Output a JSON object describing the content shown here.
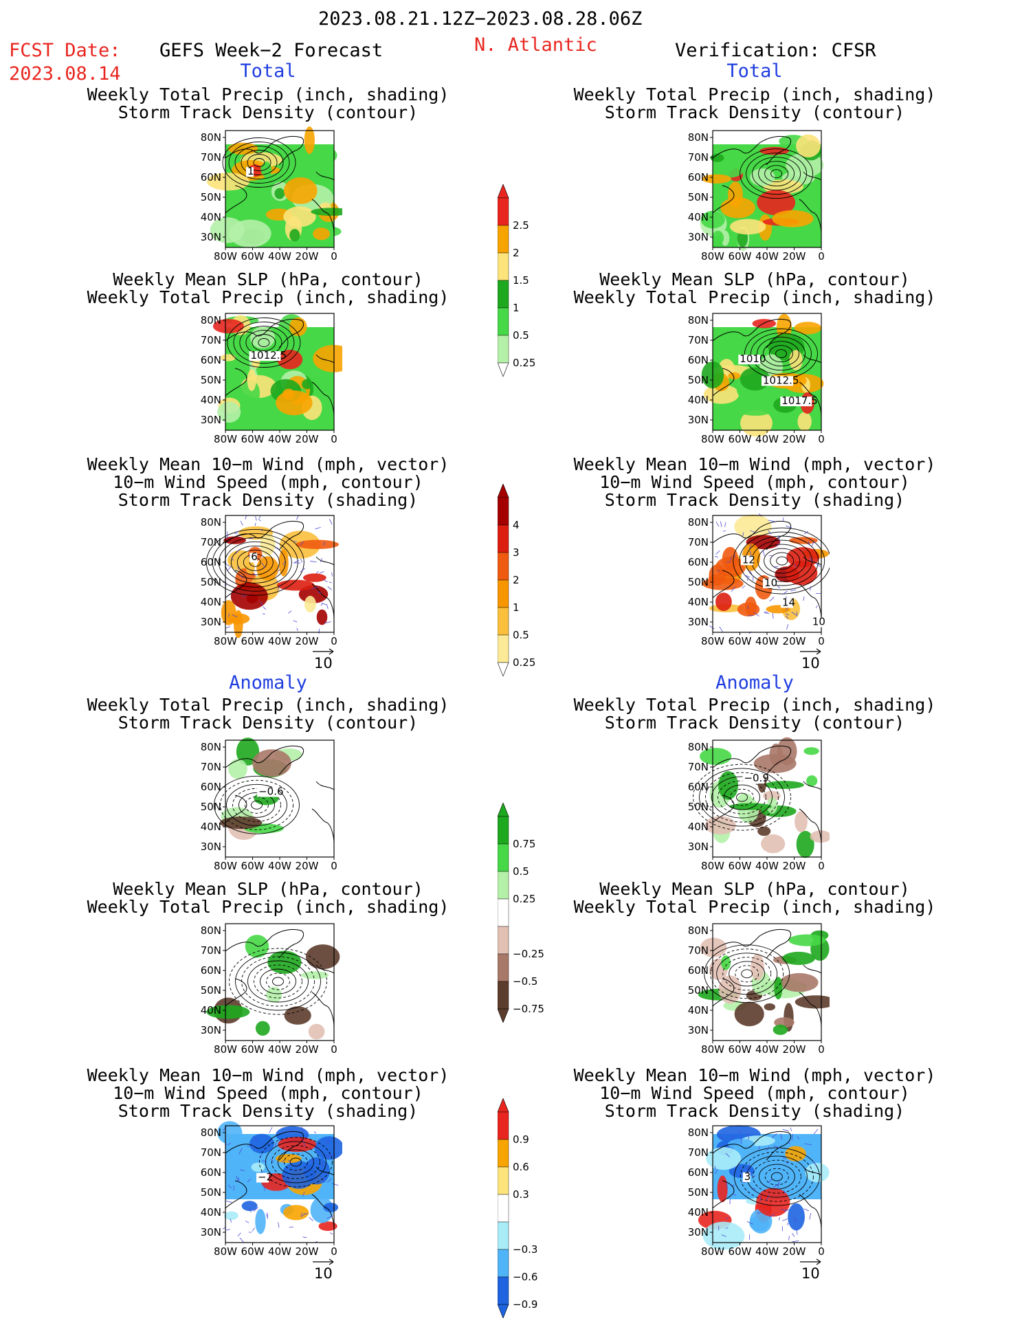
{
  "header": {
    "date_range": "2023.08.21.12Z−2023.08.28.06Z",
    "fcst_label": "FCST Date:",
    "fcst_date": "2023.08.14",
    "forecast_title": "GEFS Week−2 Forecast",
    "region": "N. Atlantic",
    "verification": "Verification: CFSR"
  },
  "sections": {
    "total": "Total",
    "anomaly": "Anomaly"
  },
  "axes": {
    "lat_ticks": [
      "80N",
      "70N",
      "60N",
      "50N",
      "40N",
      "30N"
    ],
    "lon_ticks": [
      "80W",
      "60W",
      "40W",
      "20W",
      "0"
    ]
  },
  "titles": {
    "precip_track": [
      "Weekly Total Precip (inch, shading)",
      "Storm Track Density (contour)"
    ],
    "slp_precip": [
      "Weekly Mean SLP (hPa, contour)",
      "Weekly Total Precip (inch, shading)"
    ],
    "wind_track": [
      "Weekly Mean 10−m Wind (mph, vector)",
      "10−m Wind Speed (mph, contour)",
      "Storm Track Density (shading)"
    ]
  },
  "vector_ref": "10",
  "colorbars": {
    "precip_total": {
      "labels": [
        "2.5",
        "2",
        "1.5",
        "1",
        "0.5",
        "0.25"
      ],
      "colors": [
        "#e8251f",
        "#f8a400",
        "#fce37a",
        "#1ea81e",
        "#46d846",
        "#b4f0a8"
      ]
    },
    "track_total": {
      "labels": [
        "4",
        "3",
        "2",
        "1",
        "0.5",
        "0.25"
      ],
      "colors": [
        "#a40000",
        "#dc1e10",
        "#f05a10",
        "#f89600",
        "#fac03c",
        "#fcea96"
      ]
    },
    "precip_anom": {
      "labels": [
        "0.75",
        "0.5",
        "0.25",
        "−0.25",
        "−0.5",
        "−0.75"
      ],
      "colors": [
        "#1ea81e",
        "#46d846",
        "#b4f0a8",
        "#ffffff",
        "#e2c0b4",
        "#a87868",
        "#5c3c2c"
      ]
    },
    "track_anom": {
      "labels": [
        "0.9",
        "0.6",
        "0.3",
        "−0.3",
        "−0.6",
        "−0.9"
      ],
      "colors": [
        "#e8251f",
        "#f8a400",
        "#fce37a",
        "#ffffff",
        "#a8ecf8",
        "#50b4f8",
        "#1e64e0"
      ]
    }
  },
  "contour_labels": {
    "l1": "1",
    "l2": "1012.5",
    "l3": "6",
    "l4": "1010",
    "l5": "1012.5",
    "l6": "1017.5",
    "l7": "12",
    "l8": "10",
    "l9": "14",
    "l10": "10",
    "l11": "−0.6",
    "l12": "−0.9",
    "l13": "−2",
    "l14": "3"
  }
}
